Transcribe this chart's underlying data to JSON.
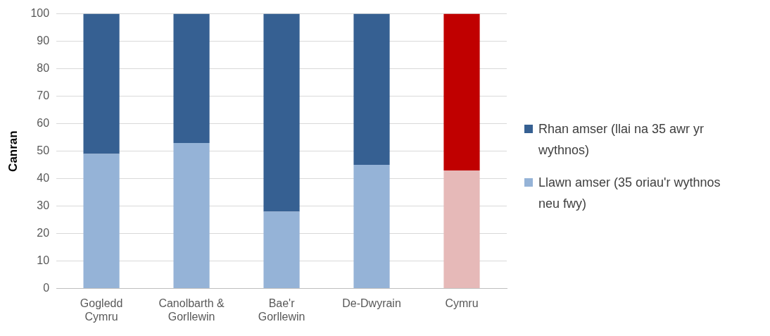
{
  "chart_data": {
    "type": "bar",
    "stacked": true,
    "ylabel": "Canran",
    "categories": [
      "Gogledd Cymru",
      "Canolbarth & Gorllewin",
      "Bae'r Gorllewin",
      "De-Dwyrain",
      "Cymru"
    ],
    "series": [
      {
        "name": "Llawn amser (35 oriau'r wythnos neu fwy)",
        "color": "#95b3d7",
        "colors": [
          "#95b3d7",
          "#95b3d7",
          "#95b3d7",
          "#95b3d7",
          "#e6b9b8"
        ],
        "values": [
          49,
          53,
          28,
          45,
          43
        ]
      },
      {
        "name": "Rhan amser (llai na 35 awr yr wythnos)",
        "color": "#366092",
        "colors": [
          "#366092",
          "#366092",
          "#366092",
          "#366092",
          "#c00000"
        ],
        "values": [
          51,
          47,
          72,
          55,
          57
        ]
      }
    ],
    "ylim": [
      0,
      100
    ],
    "yticks": [
      0,
      10,
      20,
      30,
      40,
      50,
      60,
      70,
      80,
      90,
      100
    ],
    "grid": "y",
    "legend": "right"
  }
}
